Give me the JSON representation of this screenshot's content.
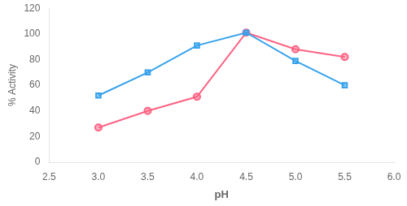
{
  "chart_data": {
    "type": "line",
    "x": [
      3,
      3.5,
      4,
      4.5,
      5,
      5.5
    ],
    "series": [
      {
        "values": [
          52,
          70,
          91,
          101,
          79,
          60
        ],
        "marker": "square"
      },
      {
        "values": [
          27,
          40,
          51,
          101,
          88,
          82
        ],
        "marker": "circle"
      }
    ],
    "xlabel": "pH",
    "ylabel": "% Activity",
    "xlim": [
      2.5,
      6.0
    ],
    "ylim": [
      0,
      120
    ],
    "xticks": [
      2.5,
      {
        "value": 3,
        "label": "3.0"
      },
      3.5,
      {
        "value": 4,
        "label": "4.0"
      },
      4.5,
      {
        "value": 5,
        "label": "5.0"
      },
      5.5,
      {
        "value": 6,
        "label": "6.0"
      }
    ],
    "yticks": [
      0,
      20,
      40,
      60,
      80,
      100,
      120
    ],
    "grid": false
  }
}
